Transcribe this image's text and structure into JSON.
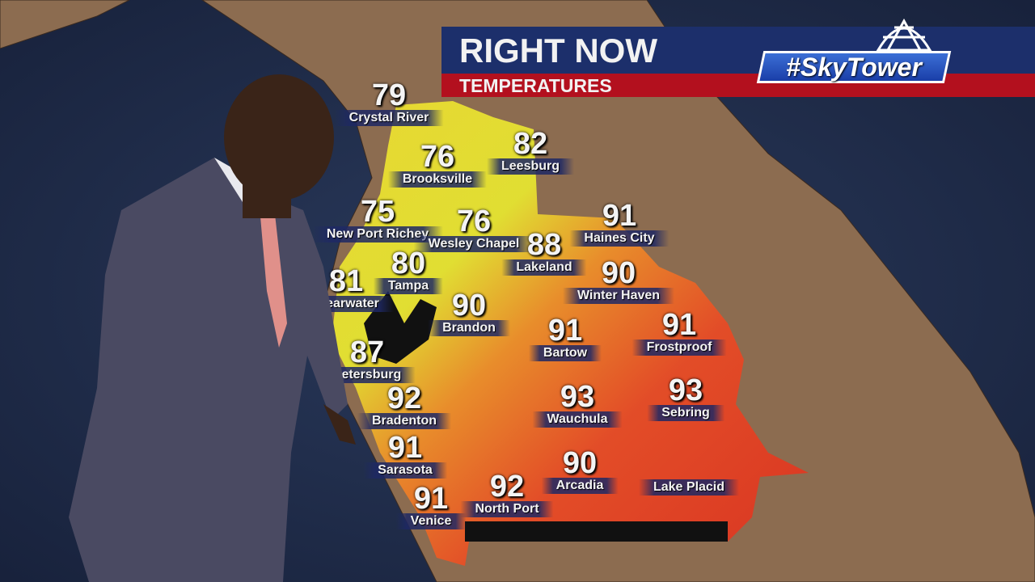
{
  "banner": {
    "title": "RIGHT NOW",
    "subtitle": "TEMPERATURES",
    "logo_text": "#SkyTower",
    "colors": {
      "navy": "#1c2f6b",
      "red": "#b3101e"
    }
  },
  "cities": [
    {
      "name": "Crystal River",
      "temp": "79"
    },
    {
      "name": "Brooksville",
      "temp": "76"
    },
    {
      "name": "Leesburg",
      "temp": "82"
    },
    {
      "name": "New Port Richey",
      "temp": "75"
    },
    {
      "name": "Wesley Chapel",
      "temp": "76"
    },
    {
      "name": "Haines City",
      "temp": "91"
    },
    {
      "name": "Lakeland",
      "temp": "88"
    },
    {
      "name": "Tampa",
      "temp": "80"
    },
    {
      "name": "Clearwater",
      "temp": "81"
    },
    {
      "name": "Winter Haven",
      "temp": "90"
    },
    {
      "name": "Brandon",
      "temp": "90"
    },
    {
      "name": "Bartow",
      "temp": "91"
    },
    {
      "name": "Frostproof",
      "temp": "91"
    },
    {
      "name": "Petersburg",
      "temp": "87"
    },
    {
      "name": "Bradenton",
      "temp": "92"
    },
    {
      "name": "Wauchula",
      "temp": "93"
    },
    {
      "name": "Sebring",
      "temp": "93"
    },
    {
      "name": "Sarasota",
      "temp": "91"
    },
    {
      "name": "Arcadia",
      "temp": "90"
    },
    {
      "name": "Lake Placid",
      "temp": ""
    },
    {
      "name": "North Port",
      "temp": "92"
    },
    {
      "name": "Venice",
      "temp": "91"
    }
  ],
  "colors": {
    "ocean": "#1e2c4a",
    "land": "#8a6a4e",
    "cool": "#e8e82a",
    "warm": "#f08a28",
    "hot": "#e23a22"
  }
}
